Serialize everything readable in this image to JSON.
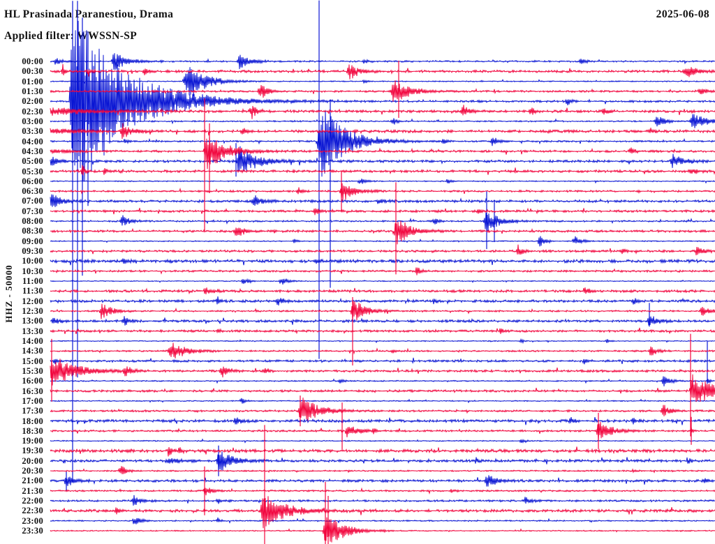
{
  "header": {
    "station": "HL Prasinada Paranestiou, Drama",
    "filter_line": "Applied filter: WWSSN-SP",
    "date": "2025-06-08"
  },
  "axis": {
    "y_label": "HHZ - 50000"
  },
  "chart_data": {
    "type": "line",
    "subtype": "helicorder",
    "title": "HL Prasinada Paranestiou, Drama",
    "filter": "WWSSN-SP",
    "date": "2025-06-08",
    "channel_scale": "HHZ - 50000",
    "minutes_per_row": 30,
    "legend_position": "none",
    "grid": false,
    "colors": {
      "even_rows": "#0a16d4",
      "odd_rows": "#f2063e",
      "text": "#111111",
      "background": "#ffffff"
    },
    "row_labels": [
      "00:00",
      "00:30",
      "01:00",
      "01:30",
      "02:00",
      "02:30",
      "03:00",
      "03:30",
      "04:00",
      "04:30",
      "05:00",
      "05:30",
      "06:00",
      "06:30",
      "07:00",
      "07:30",
      "08:00",
      "08:30",
      "09:00",
      "09:30",
      "10:00",
      "10:30",
      "11:00",
      "11:30",
      "12:00",
      "12:30",
      "13:00",
      "13:30",
      "14:00",
      "14:30",
      "15:00",
      "15:30",
      "16:00",
      "16:30",
      "17:00",
      "17:30",
      "18:00",
      "18:30",
      "19:00",
      "19:30",
      "20:00",
      "20:30",
      "21:00",
      "21:30",
      "22:00",
      "22:30",
      "23:00",
      "23:30"
    ],
    "noise_amps": [
      1.2,
      1.8,
      0.8,
      1.4,
      1.5,
      1.8,
      1.0,
      2.0,
      1.2,
      1.6,
      1.8,
      1.8,
      0.8,
      1.4,
      1.8,
      1.6,
      1.2,
      1.6,
      0.8,
      1.6,
      2.2,
      1.4,
      0.7,
      1.8,
      1.8,
      1.2,
      1.8,
      1.6,
      0.7,
      1.2,
      1.6,
      1.6,
      0.9,
      1.6,
      0.8,
      1.4,
      2.0,
      1.4,
      0.8,
      2.2,
      1.8,
      1.0,
      1.8,
      1.2,
      1.4,
      2.0,
      0.9,
      0.8
    ],
    "events": [
      [
        0,
        78,
        6,
        3,
        8
      ],
      [
        0,
        160,
        13,
        4,
        18
      ],
      [
        0,
        340,
        11,
        4,
        14
      ],
      [
        0,
        520,
        3,
        2,
        6
      ],
      [
        0,
        830,
        4,
        3,
        8
      ],
      [
        1,
        88,
        10,
        2,
        3
      ],
      [
        1,
        125,
        8,
        2,
        4
      ],
      [
        1,
        205,
        6,
        2,
        5
      ],
      [
        1,
        497,
        11,
        3,
        14
      ],
      [
        1,
        978,
        9,
        3,
        20
      ],
      [
        2,
        262,
        28,
        8,
        24
      ],
      [
        2,
        520,
        3,
        2,
        5
      ],
      [
        3,
        370,
        12,
        3,
        10
      ],
      [
        3,
        560,
        17,
        4,
        22
      ],
      [
        3,
        1000,
        5,
        3,
        10
      ],
      [
        4,
        100,
        150,
        5,
        66
      ],
      [
        4,
        810,
        5,
        3,
        6
      ],
      [
        5,
        72,
        5,
        1,
        60
      ],
      [
        5,
        358,
        10,
        3,
        8
      ],
      [
        5,
        660,
        8,
        4,
        10
      ],
      [
        5,
        758,
        6,
        3,
        6
      ],
      [
        5,
        862,
        5,
        3,
        6
      ],
      [
        6,
        560,
        6,
        3,
        6
      ],
      [
        6,
        938,
        10,
        4,
        10
      ],
      [
        6,
        988,
        14,
        4,
        18
      ],
      [
        7,
        72,
        4,
        1,
        40
      ],
      [
        7,
        172,
        12,
        4,
        14
      ],
      [
        7,
        345,
        5,
        3,
        6
      ],
      [
        7,
        930,
        4,
        2,
        5
      ],
      [
        8,
        455,
        55,
        4,
        34
      ],
      [
        8,
        177,
        4,
        2,
        5
      ],
      [
        8,
        633,
        5,
        2,
        4
      ],
      [
        8,
        703,
        7,
        3,
        8
      ],
      [
        9,
        292,
        28,
        5,
        26
      ],
      [
        9,
        900,
        7,
        3,
        6
      ],
      [
        9,
        72,
        3,
        1,
        30
      ],
      [
        10,
        72,
        7,
        2,
        10
      ],
      [
        10,
        338,
        22,
        5,
        24
      ],
      [
        10,
        960,
        9,
        4,
        16
      ],
      [
        11,
        117,
        11,
        2,
        3
      ],
      [
        11,
        148,
        6,
        2,
        4
      ],
      [
        11,
        988,
        5,
        3,
        10
      ],
      [
        12,
        513,
        5,
        3,
        8
      ],
      [
        12,
        640,
        4,
        2,
        5
      ],
      [
        13,
        425,
        6,
        3,
        5
      ],
      [
        13,
        487,
        16,
        3,
        16
      ],
      [
        14,
        72,
        12,
        2,
        14
      ],
      [
        14,
        360,
        9,
        5,
        12
      ],
      [
        14,
        540,
        4,
        3,
        8
      ],
      [
        15,
        450,
        6,
        2,
        5
      ],
      [
        15,
        683,
        5,
        2,
        5
      ],
      [
        16,
        172,
        9,
        4,
        10
      ],
      [
        16,
        620,
        6,
        2,
        5
      ],
      [
        16,
        693,
        18,
        4,
        16
      ],
      [
        17,
        335,
        10,
        4,
        10
      ],
      [
        17,
        565,
        22,
        3,
        18
      ],
      [
        18,
        420,
        3,
        2,
        4
      ],
      [
        18,
        770,
        8,
        4,
        7
      ],
      [
        18,
        820,
        7,
        4,
        8
      ],
      [
        19,
        740,
        8,
        3,
        6
      ],
      [
        19,
        890,
        4,
        2,
        5
      ],
      [
        19,
        995,
        6,
        3,
        10
      ],
      [
        20,
        175,
        5,
        3,
        6
      ],
      [
        20,
        450,
        4,
        3,
        6
      ],
      [
        21,
        595,
        7,
        2,
        6
      ],
      [
        22,
        345,
        5,
        4,
        7
      ],
      [
        22,
        400,
        6,
        4,
        8
      ],
      [
        23,
        292,
        7,
        3,
        7
      ],
      [
        23,
        835,
        6,
        3,
        6
      ],
      [
        24,
        310,
        4,
        2,
        5
      ],
      [
        24,
        395,
        7,
        4,
        8
      ],
      [
        24,
        620,
        4,
        2,
        4
      ],
      [
        24,
        905,
        4,
        3,
        6
      ],
      [
        25,
        143,
        12,
        3,
        14
      ],
      [
        25,
        503,
        20,
        3,
        16
      ],
      [
        25,
        1002,
        6,
        4,
        14
      ],
      [
        26,
        74,
        7,
        2,
        8
      ],
      [
        26,
        175,
        6,
        3,
        7
      ],
      [
        26,
        928,
        9,
        3,
        10
      ],
      [
        27,
        310,
        3,
        2,
        4
      ],
      [
        27,
        715,
        4,
        2,
        5
      ],
      [
        28,
        745,
        3,
        2,
        4
      ],
      [
        28,
        868,
        3,
        2,
        4
      ],
      [
        29,
        240,
        13,
        8,
        20
      ],
      [
        29,
        560,
        3,
        2,
        4
      ],
      [
        29,
        930,
        8,
        3,
        8
      ],
      [
        30,
        76,
        4,
        2,
        5
      ],
      [
        30,
        835,
        4,
        2,
        5
      ],
      [
        31,
        72,
        25,
        3,
        30
      ],
      [
        31,
        177,
        8,
        3,
        8
      ],
      [
        31,
        315,
        9,
        4,
        10
      ],
      [
        31,
        378,
        5,
        3,
        5
      ],
      [
        32,
        485,
        4,
        2,
        4
      ],
      [
        32,
        948,
        8,
        3,
        10
      ],
      [
        32,
        1013,
        5,
        1,
        3
      ],
      [
        33,
        988,
        25,
        3,
        30
      ],
      [
        34,
        345,
        4,
        2,
        5
      ],
      [
        35,
        427,
        22,
        5,
        22
      ],
      [
        35,
        947,
        9,
        4,
        9
      ],
      [
        36,
        335,
        7,
        3,
        6
      ],
      [
        36,
        815,
        5,
        3,
        6
      ],
      [
        36,
        905,
        4,
        2,
        5
      ],
      [
        37,
        495,
        10,
        3,
        14
      ],
      [
        37,
        533,
        4,
        2,
        4
      ],
      [
        37,
        855,
        15,
        3,
        18
      ],
      [
        37,
        990,
        5,
        1,
        2
      ],
      [
        38,
        745,
        4,
        2,
        4
      ],
      [
        39,
        240,
        8,
        2,
        4
      ],
      [
        39,
        255,
        6,
        2,
        4
      ],
      [
        40,
        237,
        4,
        3,
        20
      ],
      [
        40,
        310,
        17,
        5,
        18
      ],
      [
        40,
        680,
        4,
        2,
        4
      ],
      [
        40,
        983,
        5,
        2,
        4
      ],
      [
        41,
        170,
        8,
        3,
        8
      ],
      [
        41,
        905,
        3,
        2,
        4
      ],
      [
        42,
        93,
        10,
        2,
        10
      ],
      [
        42,
        695,
        9,
        3,
        14
      ],
      [
        42,
        1008,
        4,
        2,
        5
      ],
      [
        43,
        292,
        9,
        2,
        8
      ],
      [
        43,
        645,
        3,
        2,
        5
      ],
      [
        44,
        190,
        8,
        2,
        10
      ],
      [
        44,
        310,
        4,
        2,
        4
      ],
      [
        44,
        750,
        5,
        3,
        8
      ],
      [
        45,
        165,
        5,
        2,
        6
      ],
      [
        45,
        373,
        26,
        5,
        30
      ],
      [
        46,
        190,
        7,
        2,
        10
      ],
      [
        46,
        310,
        4,
        2,
        4
      ],
      [
        47,
        463,
        26,
        5,
        24
      ]
    ],
    "spikes": [
      [
        3,
        571,
        44,
        38
      ],
      [
        4,
        104,
        144,
        546
      ],
      [
        4,
        111,
        144,
        396
      ],
      [
        4,
        118,
        120,
        250
      ],
      [
        4,
        126,
        100,
        150
      ],
      [
        8,
        457,
        202,
        312
      ],
      [
        8,
        473,
        60,
        210
      ],
      [
        9,
        293,
        76,
        114
      ],
      [
        9,
        300,
        40,
        60
      ],
      [
        10,
        338,
        26,
        22
      ],
      [
        13,
        489,
        28,
        28
      ],
      [
        16,
        697,
        43,
        40
      ],
      [
        16,
        708,
        30,
        30
      ],
      [
        17,
        567,
        70,
        62
      ],
      [
        25,
        505,
        20,
        78
      ],
      [
        26,
        930,
        26,
        8
      ],
      [
        31,
        74,
        46,
        44
      ],
      [
        32,
        1013,
        57,
        4
      ],
      [
        33,
        989,
        82,
        65
      ],
      [
        35,
        430,
        22,
        22
      ],
      [
        35,
        490,
        12,
        55
      ],
      [
        37,
        857,
        26,
        26
      ],
      [
        37,
        990,
        20,
        20
      ],
      [
        40,
        313,
        22,
        22
      ],
      [
        42,
        95,
        14,
        14
      ],
      [
        43,
        293,
        35,
        35
      ],
      [
        45,
        379,
        123,
        49
      ],
      [
        47,
        466,
        70,
        20
      ],
      [
        47,
        470,
        50,
        20
      ]
    ]
  }
}
